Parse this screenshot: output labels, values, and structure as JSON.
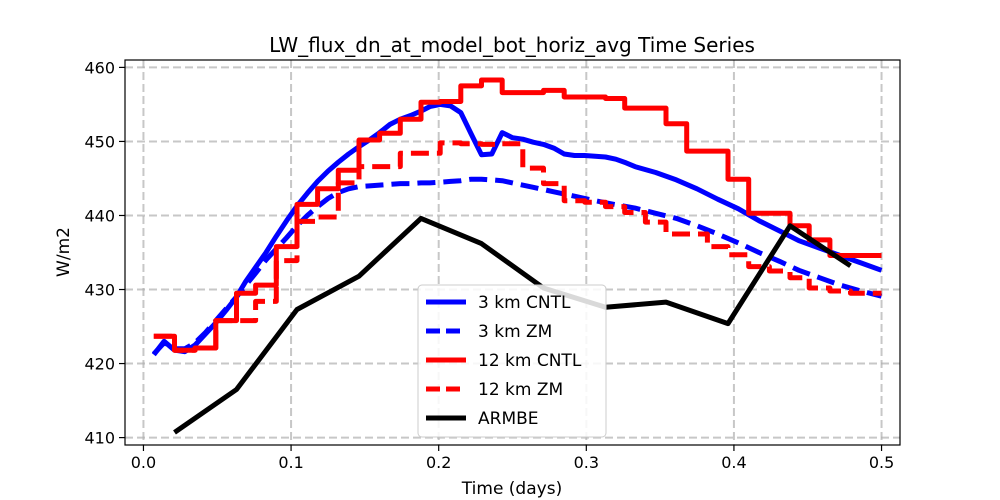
{
  "chart_data": {
    "type": "line",
    "title": "LW_flux_dn_at_model_bot_horiz_avg Time Series",
    "xlabel": "Time (days)",
    "ylabel": "W/m2",
    "xlim": [
      -0.0125,
      0.5125
    ],
    "ylim": [
      409,
      461
    ],
    "xticks": [
      0.0,
      0.1,
      0.2,
      0.3,
      0.4,
      0.5
    ],
    "xtick_labels": [
      "0.0",
      "0.1",
      "0.2",
      "0.3",
      "0.4",
      "0.5"
    ],
    "yticks": [
      410,
      420,
      430,
      440,
      450,
      460
    ],
    "ytick_labels": [
      "410",
      "420",
      "430",
      "440",
      "450",
      "460"
    ],
    "grid": true,
    "legend_position": "bottom-center",
    "series": [
      {
        "name": "3 km CNTL",
        "color": "#0000ff",
        "style": "solid",
        "x": [
          0.007,
          0.014,
          0.021,
          0.028,
          0.035,
          0.042,
          0.049,
          0.056,
          0.063,
          0.069,
          0.076,
          0.083,
          0.09,
          0.097,
          0.104,
          0.111,
          0.118,
          0.125,
          0.132,
          0.139,
          0.146,
          0.153,
          0.16,
          0.167,
          0.174,
          0.181,
          0.188,
          0.194,
          0.201,
          0.208,
          0.215,
          0.222,
          0.229,
          0.236,
          0.243,
          0.25,
          0.257,
          0.264,
          0.271,
          0.278,
          0.285,
          0.292,
          0.299,
          0.306,
          0.313,
          0.32,
          0.327,
          0.333,
          0.347,
          0.361,
          0.375,
          0.389,
          0.403,
          0.417,
          0.431,
          0.444,
          0.458,
          0.472,
          0.486,
          0.5
        ],
        "y": [
          421.2,
          423.0,
          421.8,
          421.6,
          422.5,
          424.0,
          425.5,
          427.2,
          429.0,
          431.0,
          433.0,
          435.0,
          437.2,
          439.3,
          441.3,
          443.0,
          444.6,
          446.0,
          447.2,
          448.3,
          449.3,
          450.2,
          451.2,
          452.3,
          453.0,
          453.5,
          454.1,
          454.7,
          455.0,
          454.8,
          453.9,
          451.0,
          448.2,
          448.3,
          451.2,
          450.5,
          450.3,
          449.9,
          449.6,
          449.1,
          448.3,
          448.1,
          448.1,
          448.0,
          447.9,
          447.6,
          447.1,
          446.6,
          445.8,
          444.8,
          443.6,
          442.2,
          440.9,
          439.3,
          437.9,
          436.6,
          435.6,
          434.6,
          433.6,
          432.6
        ]
      },
      {
        "name": "3 km ZM",
        "color": "#0000ff",
        "style": "dashed",
        "x": [
          0.007,
          0.014,
          0.021,
          0.028,
          0.035,
          0.042,
          0.049,
          0.056,
          0.063,
          0.069,
          0.076,
          0.083,
          0.09,
          0.097,
          0.104,
          0.111,
          0.118,
          0.125,
          0.132,
          0.139,
          0.146,
          0.153,
          0.16,
          0.167,
          0.174,
          0.181,
          0.188,
          0.194,
          0.201,
          0.208,
          0.215,
          0.222,
          0.229,
          0.236,
          0.243,
          0.25,
          0.264,
          0.278,
          0.292,
          0.306,
          0.319,
          0.333,
          0.347,
          0.361,
          0.375,
          0.389,
          0.403,
          0.417,
          0.431,
          0.444,
          0.458,
          0.472,
          0.486,
          0.5
        ],
        "y": [
          421.3,
          422.8,
          422.0,
          422.0,
          422.8,
          424.2,
          425.8,
          427.4,
          429.0,
          430.5,
          432.2,
          434.0,
          435.5,
          437.0,
          438.6,
          440.0,
          441.2,
          442.3,
          443.1,
          443.6,
          443.9,
          444.0,
          444.1,
          444.2,
          444.3,
          444.3,
          444.4,
          444.4,
          444.5,
          444.6,
          444.7,
          444.9,
          444.9,
          444.8,
          444.7,
          444.4,
          443.8,
          443.2,
          442.6,
          442.0,
          441.5,
          441.0,
          440.3,
          439.6,
          438.6,
          437.5,
          436.3,
          435.0,
          433.8,
          432.6,
          431.6,
          430.6,
          429.8,
          429.1
        ]
      },
      {
        "name": "12 km CNTL",
        "color": "#ff0000",
        "style": "solid",
        "x": [
          0.007,
          0.021,
          0.021,
          0.035,
          0.035,
          0.049,
          0.049,
          0.063,
          0.063,
          0.076,
          0.076,
          0.09,
          0.09,
          0.104,
          0.104,
          0.118,
          0.118,
          0.132,
          0.132,
          0.146,
          0.146,
          0.16,
          0.16,
          0.174,
          0.174,
          0.188,
          0.188,
          0.201,
          0.201,
          0.215,
          0.215,
          0.229,
          0.229,
          0.243,
          0.243,
          0.257,
          0.257,
          0.271,
          0.271,
          0.285,
          0.285,
          0.299,
          0.299,
          0.313,
          0.313,
          0.326,
          0.326,
          0.34,
          0.34,
          0.354,
          0.354,
          0.368,
          0.368,
          0.382,
          0.382,
          0.396,
          0.396,
          0.41,
          0.41,
          0.424,
          0.424,
          0.438,
          0.438,
          0.451,
          0.451,
          0.465,
          0.465,
          0.479,
          0.479,
          0.5
        ],
        "y": [
          423.7,
          423.7,
          421.8,
          421.8,
          422.1,
          422.1,
          425.8,
          425.8,
          429.5,
          429.5,
          430.6,
          430.6,
          435.8,
          435.8,
          441.5,
          441.5,
          443.6,
          443.6,
          446.1,
          446.1,
          450.2,
          450.2,
          451.1,
          451.1,
          453.0,
          453.0,
          455.3,
          455.3,
          455.4,
          455.4,
          457.5,
          457.5,
          458.3,
          458.3,
          456.6,
          456.6,
          456.6,
          456.6,
          456.9,
          456.9,
          456.0,
          456.0,
          456.0,
          456.0,
          455.8,
          455.8,
          454.5,
          454.5,
          454.5,
          454.5,
          452.4,
          452.4,
          448.7,
          448.7,
          448.7,
          448.7,
          444.9,
          444.9,
          440.3,
          440.3,
          440.3,
          440.3,
          438.6,
          438.6,
          436.7,
          436.7,
          434.6,
          434.6,
          434.6,
          434.6
        ]
      },
      {
        "name": "12 km ZM",
        "color": "#ff0000",
        "style": "dashed",
        "x": [
          0.007,
          0.021,
          0.021,
          0.035,
          0.035,
          0.049,
          0.049,
          0.063,
          0.063,
          0.076,
          0.076,
          0.09,
          0.09,
          0.104,
          0.104,
          0.118,
          0.118,
          0.132,
          0.132,
          0.146,
          0.146,
          0.16,
          0.16,
          0.174,
          0.174,
          0.188,
          0.188,
          0.201,
          0.201,
          0.215,
          0.215,
          0.229,
          0.229,
          0.243,
          0.243,
          0.257,
          0.257,
          0.271,
          0.271,
          0.285,
          0.285,
          0.299,
          0.299,
          0.313,
          0.313,
          0.326,
          0.326,
          0.34,
          0.34,
          0.354,
          0.354,
          0.368,
          0.368,
          0.382,
          0.382,
          0.396,
          0.396,
          0.41,
          0.41,
          0.424,
          0.424,
          0.438,
          0.438,
          0.451,
          0.451,
          0.465,
          0.465,
          0.479,
          0.479,
          0.5
        ],
        "y": [
          423.7,
          423.7,
          421.8,
          421.8,
          422.1,
          422.1,
          425.8,
          425.8,
          425.8,
          425.8,
          428.4,
          428.4,
          433.9,
          433.9,
          439.2,
          439.2,
          439.8,
          439.8,
          444.4,
          444.4,
          446.6,
          446.6,
          446.6,
          446.6,
          448.4,
          448.4,
          448.4,
          448.4,
          449.8,
          449.8,
          449.7,
          449.7,
          449.6,
          449.6,
          449.7,
          449.7,
          446.4,
          446.4,
          444.3,
          444.3,
          442.0,
          442.0,
          441.8,
          441.8,
          441.2,
          441.2,
          440.4,
          440.4,
          439.1,
          439.1,
          437.5,
          437.5,
          437.5,
          437.5,
          435.8,
          435.8,
          434.7,
          434.7,
          433.1,
          433.1,
          432.5,
          432.5,
          431.6,
          431.6,
          430.2,
          430.2,
          429.8,
          429.8,
          429.5,
          429.5
        ]
      },
      {
        "name": "ARMBE",
        "color": "#000000",
        "style": "solid",
        "x": [
          0.021,
          0.063,
          0.104,
          0.146,
          0.188,
          0.229,
          0.271,
          0.313,
          0.354,
          0.396,
          0.438,
          0.479
        ],
        "y": [
          410.7,
          416.5,
          427.3,
          431.8,
          439.6,
          436.2,
          430.2,
          427.6,
          428.3,
          425.4,
          438.6,
          433.2
        ]
      }
    ]
  }
}
